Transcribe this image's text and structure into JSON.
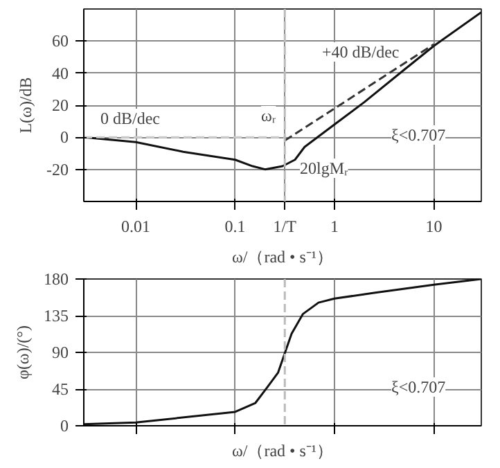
{
  "chart_data": [
    {
      "type": "line",
      "xlabel": "ω/（rad • s⁻¹）",
      "ylabel": "L(ω)/dB",
      "log": "x",
      "xlim": [
        0.003,
        30
      ],
      "ylim": [
        -40,
        80
      ],
      "xticks": [
        0.01,
        0.1,
        1,
        10
      ],
      "yticks": [
        -20,
        0,
        20,
        40,
        60
      ],
      "grid": true,
      "line_style": "solid",
      "marker": "none",
      "series": [
        {
          "color": "#111111",
          "x": [
            0.003,
            0.01,
            0.03,
            0.1,
            0.15,
            0.2,
            0.3,
            0.4,
            0.5,
            1,
            2,
            5,
            10,
            30
          ],
          "values": [
            0,
            -3,
            -9,
            -14,
            -18,
            -20,
            -18,
            -14,
            -6,
            8,
            22,
            42,
            57,
            78
          ]
        },
        {
          "color": "#cccccc",
          "line_style": "dashed",
          "x": [
            0.003,
            0.316
          ],
          "values": [
            0,
            0
          ]
        },
        {
          "color": "#333333",
          "line_style": "dashed",
          "x": [
            0.316,
            10
          ],
          "values": [
            -2,
            58
          ]
        }
      ],
      "ref_lines": [
        {
          "axis": "x",
          "value": 0.316,
          "label": "1/T",
          "color": "#bbbbbb",
          "line_style": "dashed"
        }
      ],
      "annotations": [
        "0 dB/dec",
        "+40 dB/dec",
        "ωᵣ",
        "20lgMᵣ",
        "ξ<0.707"
      ]
    },
    {
      "type": "line",
      "xlabel": "ω/（rad • s⁻¹）",
      "ylabel": "φ(ω)/(°)",
      "log": "x",
      "xlim": [
        0.003,
        30
      ],
      "ylim": [
        0,
        180
      ],
      "xticks": [
        0.01,
        0.1,
        1,
        10
      ],
      "yticks": [
        0,
        45,
        90,
        135,
        180
      ],
      "grid": true,
      "tick_labels": "y",
      "line_style": "solid",
      "marker": "none",
      "series": [
        {
          "color": "#111111",
          "x": [
            0.003,
            0.01,
            0.1,
            0.16,
            0.21,
            0.27,
            0.316,
            0.37,
            0.48,
            0.69,
            1,
            2.5,
            10,
            30
          ],
          "values": [
            2,
            4,
            17,
            28,
            47,
            65,
            89,
            113,
            137,
            151,
            156,
            163,
            173,
            180
          ]
        }
      ],
      "ref_lines": [
        {
          "axis": "x",
          "value": 0.316,
          "color": "#bbbbbb",
          "line_style": "dashed"
        }
      ],
      "annotations": [
        "ξ<0.707"
      ]
    }
  ]
}
